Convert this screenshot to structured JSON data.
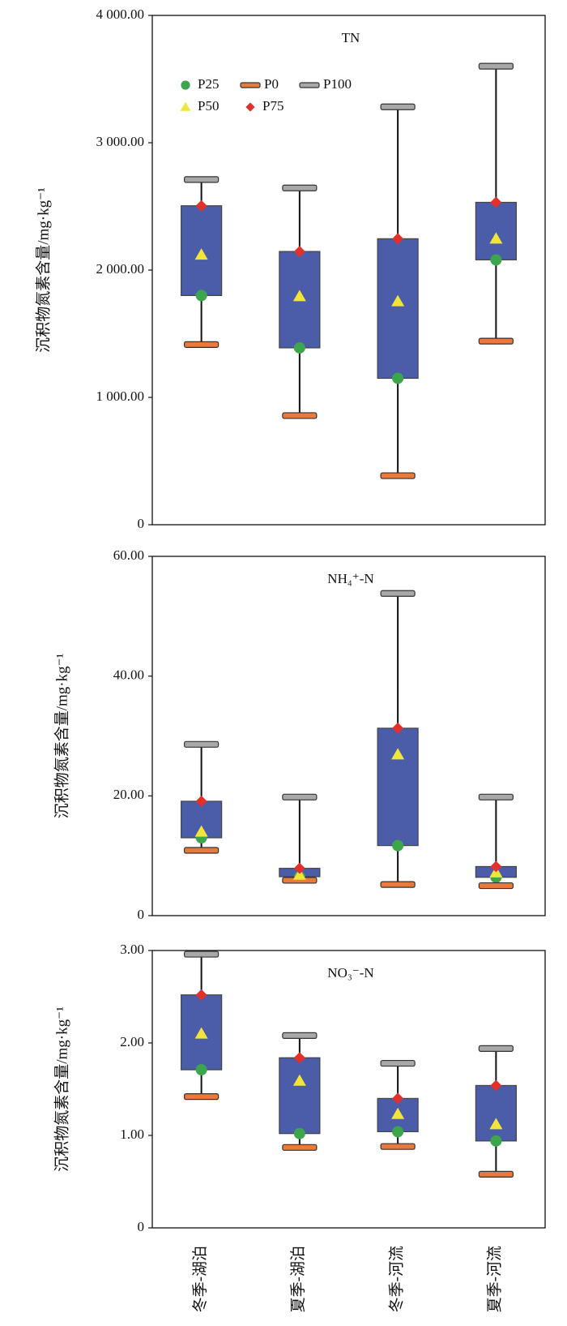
{
  "chart_data": [
    {
      "type": "box",
      "title": "TN",
      "ylabel": "沉积物氮素含量/mg·kg⁻¹",
      "ylim": [
        0,
        4000
      ],
      "yticks": [
        0,
        {
          "value": 1000,
          "label": "1 000.00"
        },
        {
          "value": 2000,
          "label": "2 000.00"
        },
        {
          "value": 3000,
          "label": "3 000.00"
        },
        {
          "value": 4000,
          "label": "4 000.00"
        }
      ],
      "box_color": "#4b5ca8",
      "series": [
        {
          "name": "P25",
          "marker": "circle",
          "color": "#3da54b",
          "values": [
            1800,
            1389,
            1150,
            2080
          ]
        },
        {
          "name": "P0",
          "marker": "cap",
          "color": "#ea7a3c",
          "values": [
            1415,
            857,
            385,
            1442
          ]
        },
        {
          "name": "P100",
          "marker": "cap",
          "color": "#a8a8a8",
          "values": [
            2711,
            2645,
            3282,
            3601
          ]
        },
        {
          "name": "P50",
          "marker": "triangle",
          "color": "#f1e53a",
          "values": [
            2120,
            1794,
            1754,
            2246
          ]
        },
        {
          "name": "P75",
          "marker": "diamond",
          "color": "#e2302a",
          "values": [
            2505,
            2146,
            2246,
            2532
          ]
        }
      ]
    },
    {
      "type": "box",
      "title": "NH₄⁺-N",
      "ylabel": "沉积物氮素含量/mg·kg⁻¹",
      "ylim": [
        0,
        60
      ],
      "yticks": [
        0,
        {
          "value": 20,
          "label": "20.00"
        },
        {
          "value": 40,
          "label": "40.00"
        },
        {
          "value": 60,
          "label": "60.00"
        }
      ],
      "box_color": "#4b5ca8",
      "series": [
        {
          "marker": "circle",
          "color": "#3da54b",
          "values": [
            13.0,
            6.5,
            11.7,
            6.4
          ]
        },
        {
          "marker": "cap",
          "color": "#ea7a3c",
          "values": [
            10.9,
            5.9,
            5.2,
            5.0
          ]
        },
        {
          "marker": "cap",
          "color": "#a8a8a8",
          "values": [
            28.6,
            19.8,
            53.8,
            19.8
          ]
        },
        {
          "marker": "triangle",
          "color": "#f1e53a",
          "values": [
            14.0,
            6.8,
            26.9,
            7.2
          ]
        },
        {
          "marker": "diamond",
          "color": "#e2302a",
          "values": [
            19.1,
            7.9,
            31.3,
            8.2
          ]
        }
      ]
    },
    {
      "type": "box",
      "title": "NO₃⁻-N",
      "ylabel": "沉积物氮素含量/mg·kg⁻¹",
      "ylim": [
        0,
        3
      ],
      "yticks": [
        0,
        {
          "value": 1,
          "label": "1.00"
        },
        {
          "value": 2,
          "label": "2.00"
        },
        {
          "value": 3,
          "label": "3.00"
        }
      ],
      "box_color": "#4b5ca8",
      "categories": [
        "冬季-湖泊",
        "夏季-湖泊",
        "冬季-河流",
        "夏季-河流"
      ],
      "series": [
        {
          "marker": "circle",
          "color": "#3da54b",
          "values": [
            1.71,
            1.02,
            1.04,
            0.94
          ]
        },
        {
          "marker": "cap",
          "color": "#ea7a3c",
          "values": [
            1.42,
            0.87,
            0.88,
            0.58
          ]
        },
        {
          "marker": "cap",
          "color": "#a8a8a8",
          "values": [
            2.96,
            2.08,
            1.78,
            1.94
          ]
        },
        {
          "marker": "triangle",
          "color": "#f1e53a",
          "values": [
            2.1,
            1.59,
            1.23,
            1.12
          ]
        },
        {
          "marker": "diamond",
          "color": "#e2302a",
          "values": [
            2.52,
            1.84,
            1.4,
            1.54
          ]
        }
      ]
    }
  ]
}
